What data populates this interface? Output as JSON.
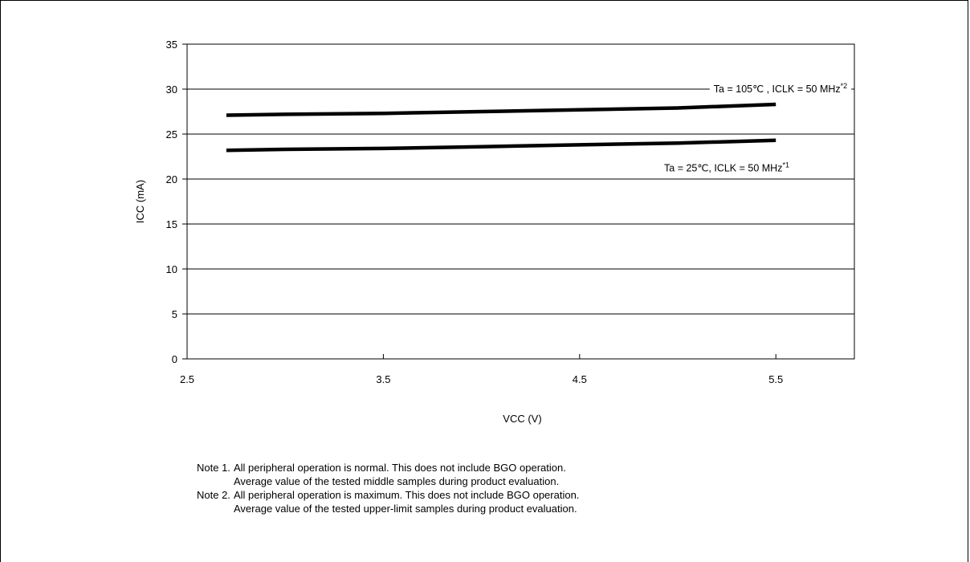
{
  "chart_data": {
    "type": "line",
    "xlabel": "VCC (V)",
    "ylabel": "ICC (mA)",
    "xlim": [
      2.5,
      5.9
    ],
    "ylim": [
      0,
      35
    ],
    "xticks": [
      2.5,
      3.5,
      4.5,
      5.5
    ],
    "xtick_labels": [
      "2.5",
      "3.5",
      "4.5",
      "5.5"
    ],
    "yticks": [
      0,
      5,
      10,
      15,
      20,
      25,
      30,
      35
    ],
    "ytick_labels": [
      "0",
      "5",
      "10",
      "15",
      "20",
      "25",
      "30",
      "35"
    ],
    "grid": "horizontal",
    "series": [
      {
        "name": "Ta = 105℃ , ICLK = 50 MHz",
        "superscript": "*2",
        "x": [
          2.7,
          3.0,
          3.5,
          4.0,
          4.5,
          5.0,
          5.5
        ],
        "y": [
          27.1,
          27.2,
          27.3,
          27.5,
          27.7,
          27.9,
          28.3
        ]
      },
      {
        "name": "Ta = 25℃,  ICLK = 50 MHz",
        "superscript": "*1",
        "x": [
          2.7,
          3.0,
          3.5,
          4.0,
          4.5,
          5.0,
          5.5
        ],
        "y": [
          23.2,
          23.3,
          23.4,
          23.6,
          23.8,
          24.0,
          24.3
        ]
      }
    ]
  },
  "notes": [
    {
      "label": "Note 1.",
      "lines": [
        "All peripheral operation is normal. This does not include BGO operation.",
        "Average value of the tested middle samples during product evaluation."
      ]
    },
    {
      "label": "Note 2.",
      "lines": [
        "All peripheral operation is maximum. This does not include BGO operation.",
        "Average value of the tested upper-limit samples during product evaluation."
      ]
    }
  ]
}
